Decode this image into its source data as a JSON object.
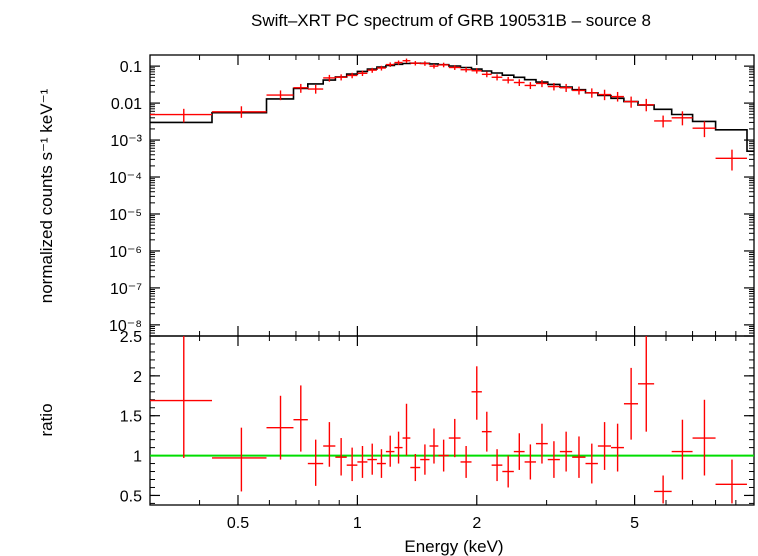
{
  "chart_data": [
    {
      "type": "scatter",
      "panel": "spectrum",
      "title": "Swift–XRT PC spectrum of GRB 190531B – source 8",
      "ylabel": "normalized counts s⁻¹ keV⁻¹",
      "xlabel": "",
      "xscale": "log",
      "yscale": "log",
      "xlim": [
        0.3,
        10
      ],
      "ylim": [
        5e-09,
        0.2
      ],
      "y_ticks": [
        {
          "value": 0.1,
          "label": "0.1"
        },
        {
          "value": 0.01,
          "label": "0.01"
        },
        {
          "value": 0.001,
          "label": "10⁻³"
        },
        {
          "value": 0.0001,
          "label": "10⁻⁴"
        },
        {
          "value": 1e-05,
          "label": "10⁻⁵"
        },
        {
          "value": 1e-06,
          "label": "10⁻⁶"
        },
        {
          "value": 1e-07,
          "label": "10⁻⁷"
        },
        {
          "value": 1e-08,
          "label": "10⁻⁸"
        }
      ],
      "colors": {
        "data": "#ff0000",
        "model": "#000000"
      },
      "series": [
        {
          "kind": "data-with-errors",
          "points": [
            {
              "x": 0.365,
              "xlo": 0.3,
              "xhi": 0.43,
              "y": 0.0049,
              "ylo": 0.003,
              "yhi": 0.007
            },
            {
              "x": 0.51,
              "xlo": 0.43,
              "xhi": 0.59,
              "y": 0.0058,
              "ylo": 0.004,
              "yhi": 0.0082
            },
            {
              "x": 0.64,
              "xlo": 0.59,
              "xhi": 0.69,
              "y": 0.0165,
              "ylo": 0.012,
              "yhi": 0.022
            },
            {
              "x": 0.72,
              "xlo": 0.69,
              "xhi": 0.75,
              "y": 0.026,
              "ylo": 0.019,
              "yhi": 0.033
            },
            {
              "x": 0.785,
              "xlo": 0.75,
              "xhi": 0.82,
              "y": 0.024,
              "ylo": 0.018,
              "yhi": 0.031
            },
            {
              "x": 0.85,
              "xlo": 0.82,
              "xhi": 0.88,
              "y": 0.048,
              "ylo": 0.038,
              "yhi": 0.058
            },
            {
              "x": 0.91,
              "xlo": 0.88,
              "xhi": 0.94,
              "y": 0.05,
              "ylo": 0.041,
              "yhi": 0.06
            },
            {
              "x": 0.97,
              "xlo": 0.94,
              "xhi": 1.0,
              "y": 0.056,
              "ylo": 0.047,
              "yhi": 0.066
            },
            {
              "x": 1.03,
              "xlo": 1.0,
              "xhi": 1.06,
              "y": 0.064,
              "ylo": 0.054,
              "yhi": 0.075
            },
            {
              "x": 1.09,
              "xlo": 1.06,
              "xhi": 1.12,
              "y": 0.078,
              "ylo": 0.066,
              "yhi": 0.09
            },
            {
              "x": 1.15,
              "xlo": 1.12,
              "xhi": 1.18,
              "y": 0.089,
              "ylo": 0.076,
              "yhi": 0.102
            },
            {
              "x": 1.21,
              "xlo": 1.18,
              "xhi": 1.24,
              "y": 0.11,
              "ylo": 0.095,
              "yhi": 0.126
            },
            {
              "x": 1.27,
              "xlo": 1.24,
              "xhi": 1.3,
              "y": 0.125,
              "ylo": 0.108,
              "yhi": 0.142
            },
            {
              "x": 1.33,
              "xlo": 1.3,
              "xhi": 1.36,
              "y": 0.14,
              "ylo": 0.122,
              "yhi": 0.16
            },
            {
              "x": 1.4,
              "xlo": 1.36,
              "xhi": 1.44,
              "y": 0.12,
              "ylo": 0.104,
              "yhi": 0.137
            },
            {
              "x": 1.48,
              "xlo": 1.44,
              "xhi": 1.52,
              "y": 0.118,
              "ylo": 0.102,
              "yhi": 0.135
            },
            {
              "x": 1.56,
              "xlo": 1.52,
              "xhi": 1.6,
              "y": 0.1,
              "ylo": 0.086,
              "yhi": 0.115
            },
            {
              "x": 1.65,
              "xlo": 1.6,
              "xhi": 1.7,
              "y": 0.108,
              "ylo": 0.093,
              "yhi": 0.124
            },
            {
              "x": 1.76,
              "xlo": 1.7,
              "xhi": 1.82,
              "y": 0.092,
              "ylo": 0.079,
              "yhi": 0.106
            },
            {
              "x": 1.88,
              "xlo": 1.82,
              "xhi": 1.94,
              "y": 0.08,
              "ylo": 0.068,
              "yhi": 0.093
            },
            {
              "x": 2.0,
              "xlo": 1.94,
              "xhi": 2.06,
              "y": 0.075,
              "ylo": 0.063,
              "yhi": 0.088
            },
            {
              "x": 2.12,
              "xlo": 2.06,
              "xhi": 2.18,
              "y": 0.06,
              "ylo": 0.05,
              "yhi": 0.071
            },
            {
              "x": 2.25,
              "xlo": 2.18,
              "xhi": 2.32,
              "y": 0.05,
              "ylo": 0.041,
              "yhi": 0.06
            },
            {
              "x": 2.4,
              "xlo": 2.32,
              "xhi": 2.48,
              "y": 0.042,
              "ylo": 0.034,
              "yhi": 0.051
            },
            {
              "x": 2.56,
              "xlo": 2.48,
              "xhi": 2.64,
              "y": 0.036,
              "ylo": 0.029,
              "yhi": 0.044
            },
            {
              "x": 2.73,
              "xlo": 2.64,
              "xhi": 2.82,
              "y": 0.03,
              "ylo": 0.024,
              "yhi": 0.037
            },
            {
              "x": 2.92,
              "xlo": 2.82,
              "xhi": 3.02,
              "y": 0.034,
              "ylo": 0.027,
              "yhi": 0.042
            },
            {
              "x": 3.13,
              "xlo": 3.02,
              "xhi": 3.24,
              "y": 0.028,
              "ylo": 0.022,
              "yhi": 0.035
            },
            {
              "x": 3.36,
              "xlo": 3.24,
              "xhi": 3.48,
              "y": 0.026,
              "ylo": 0.02,
              "yhi": 0.033
            },
            {
              "x": 3.62,
              "xlo": 3.48,
              "xhi": 3.76,
              "y": 0.022,
              "ylo": 0.017,
              "yhi": 0.028
            },
            {
              "x": 3.9,
              "xlo": 3.76,
              "xhi": 4.04,
              "y": 0.019,
              "ylo": 0.014,
              "yhi": 0.025
            },
            {
              "x": 4.2,
              "xlo": 4.04,
              "xhi": 4.36,
              "y": 0.017,
              "ylo": 0.012,
              "yhi": 0.023
            },
            {
              "x": 4.53,
              "xlo": 4.36,
              "xhi": 4.7,
              "y": 0.015,
              "ylo": 0.011,
              "yhi": 0.02
            },
            {
              "x": 4.9,
              "xlo": 4.7,
              "xhi": 5.1,
              "y": 0.011,
              "ylo": 0.0075,
              "yhi": 0.015
            },
            {
              "x": 5.35,
              "xlo": 5.1,
              "xhi": 5.6,
              "y": 0.009,
              "ylo": 0.006,
              "yhi": 0.013
            },
            {
              "x": 5.9,
              "xlo": 5.6,
              "xhi": 6.2,
              "y": 0.0033,
              "ylo": 0.0022,
              "yhi": 0.0046
            },
            {
              "x": 6.6,
              "xlo": 6.2,
              "xhi": 7.0,
              "y": 0.004,
              "ylo": 0.0025,
              "yhi": 0.006
            },
            {
              "x": 7.5,
              "xlo": 7.0,
              "xhi": 8.0,
              "y": 0.0021,
              "ylo": 0.0012,
              "yhi": 0.0032
            },
            {
              "x": 8.8,
              "xlo": 8.0,
              "xhi": 9.6,
              "y": 0.00032,
              "ylo": 0.00015,
              "yhi": 0.00055
            }
          ]
        },
        {
          "kind": "model-step",
          "edges": [
            0.3,
            0.43,
            0.59,
            0.69,
            0.75,
            0.82,
            0.88,
            0.94,
            1.0,
            1.06,
            1.12,
            1.18,
            1.24,
            1.3,
            1.36,
            1.44,
            1.52,
            1.6,
            1.7,
            1.82,
            1.94,
            2.06,
            2.18,
            2.32,
            2.48,
            2.64,
            2.82,
            3.02,
            3.24,
            3.48,
            3.76,
            4.04,
            4.36,
            4.7,
            5.1,
            5.6,
            6.2,
            7.0,
            8.0,
            9.6,
            10.0
          ],
          "values": [
            0.003,
            0.0055,
            0.013,
            0.025,
            0.033,
            0.042,
            0.051,
            0.061,
            0.072,
            0.083,
            0.094,
            0.104,
            0.112,
            0.118,
            0.12,
            0.119,
            0.115,
            0.109,
            0.101,
            0.092,
            0.083,
            0.074,
            0.065,
            0.057,
            0.05,
            0.043,
            0.037,
            0.032,
            0.027,
            0.023,
            0.019,
            0.016,
            0.0135,
            0.011,
            0.0088,
            0.0068,
            0.0049,
            0.0032,
            0.0019,
            0.0005
          ]
        }
      ]
    },
    {
      "type": "scatter",
      "panel": "ratio",
      "xlabel": "Energy (keV)",
      "ylabel": "ratio",
      "xscale": "log",
      "xlim": [
        0.3,
        10
      ],
      "ylim": [
        0.38,
        2.5
      ],
      "x_ticks": [
        {
          "value": 0.5,
          "label": "0.5"
        },
        {
          "value": 1,
          "label": "1"
        },
        {
          "value": 2,
          "label": "2"
        },
        {
          "value": 5,
          "label": "5"
        }
      ],
      "y_ticks": [
        {
          "value": 0.5,
          "label": "0.5"
        },
        {
          "value": 1,
          "label": "1"
        },
        {
          "value": 1.5,
          "label": "1.5"
        },
        {
          "value": 2,
          "label": "2"
        },
        {
          "value": 2.5,
          "label": "2.5"
        }
      ],
      "reference_line": {
        "y": 1,
        "color": "#00dd00"
      },
      "colors": {
        "data": "#ff0000"
      },
      "series": [
        {
          "kind": "data-with-errors",
          "points": [
            {
              "x": 0.365,
              "xlo": 0.3,
              "xhi": 0.43,
              "y": 1.69,
              "ylo": 0.97,
              "yhi": 2.5
            },
            {
              "x": 0.51,
              "xlo": 0.43,
              "xhi": 0.59,
              "y": 0.97,
              "ylo": 0.55,
              "yhi": 1.35
            },
            {
              "x": 0.64,
              "xlo": 0.59,
              "xhi": 0.69,
              "y": 1.35,
              "ylo": 0.95,
              "yhi": 1.75
            },
            {
              "x": 0.72,
              "xlo": 0.69,
              "xhi": 0.75,
              "y": 1.45,
              "ylo": 1.05,
              "yhi": 1.88
            },
            {
              "x": 0.785,
              "xlo": 0.75,
              "xhi": 0.82,
              "y": 0.9,
              "ylo": 0.62,
              "yhi": 1.2
            },
            {
              "x": 0.85,
              "xlo": 0.82,
              "xhi": 0.88,
              "y": 1.12,
              "ylo": 0.86,
              "yhi": 1.42
            },
            {
              "x": 0.91,
              "xlo": 0.88,
              "xhi": 0.94,
              "y": 0.98,
              "ylo": 0.75,
              "yhi": 1.22
            },
            {
              "x": 0.97,
              "xlo": 0.94,
              "xhi": 1.0,
              "y": 0.88,
              "ylo": 0.68,
              "yhi": 1.1
            },
            {
              "x": 1.03,
              "xlo": 1.0,
              "xhi": 1.06,
              "y": 0.92,
              "ylo": 0.72,
              "yhi": 1.12
            },
            {
              "x": 1.09,
              "xlo": 1.06,
              "xhi": 1.12,
              "y": 0.95,
              "ylo": 0.76,
              "yhi": 1.15
            },
            {
              "x": 1.15,
              "xlo": 1.12,
              "xhi": 1.18,
              "y": 0.9,
              "ylo": 0.72,
              "yhi": 1.08
            },
            {
              "x": 1.21,
              "xlo": 1.18,
              "xhi": 1.24,
              "y": 1.05,
              "ylo": 0.86,
              "yhi": 1.25
            },
            {
              "x": 1.27,
              "xlo": 1.24,
              "xhi": 1.3,
              "y": 1.1,
              "ylo": 0.9,
              "yhi": 1.3
            },
            {
              "x": 1.33,
              "xlo": 1.3,
              "xhi": 1.36,
              "y": 1.22,
              "ylo": 1.0,
              "yhi": 1.65
            },
            {
              "x": 1.4,
              "xlo": 1.36,
              "xhi": 1.44,
              "y": 0.85,
              "ylo": 0.68,
              "yhi": 1.02
            },
            {
              "x": 1.48,
              "xlo": 1.44,
              "xhi": 1.52,
              "y": 0.95,
              "ylo": 0.76,
              "yhi": 1.14
            },
            {
              "x": 1.56,
              "xlo": 1.52,
              "xhi": 1.6,
              "y": 1.12,
              "ylo": 0.9,
              "yhi": 1.34
            },
            {
              "x": 1.65,
              "xlo": 1.6,
              "xhi": 1.7,
              "y": 1.0,
              "ylo": 0.8,
              "yhi": 1.2
            },
            {
              "x": 1.76,
              "xlo": 1.7,
              "xhi": 1.82,
              "y": 1.22,
              "ylo": 0.98,
              "yhi": 1.46
            },
            {
              "x": 1.88,
              "xlo": 1.82,
              "xhi": 1.94,
              "y": 0.92,
              "ylo": 0.72,
              "yhi": 1.12
            },
            {
              "x": 2.0,
              "xlo": 1.94,
              "xhi": 2.06,
              "y": 1.8,
              "ylo": 1.45,
              "yhi": 2.12
            },
            {
              "x": 2.12,
              "xlo": 2.06,
              "xhi": 2.18,
              "y": 1.3,
              "ylo": 1.05,
              "yhi": 1.55
            },
            {
              "x": 2.25,
              "xlo": 2.18,
              "xhi": 2.32,
              "y": 0.88,
              "ylo": 0.68,
              "yhi": 1.08
            },
            {
              "x": 2.4,
              "xlo": 2.32,
              "xhi": 2.48,
              "y": 0.8,
              "ylo": 0.6,
              "yhi": 1.0
            },
            {
              "x": 2.56,
              "xlo": 2.48,
              "xhi": 2.64,
              "y": 1.05,
              "ylo": 0.82,
              "yhi": 1.28
            },
            {
              "x": 2.73,
              "xlo": 2.64,
              "xhi": 2.82,
              "y": 0.92,
              "ylo": 0.7,
              "yhi": 1.14
            },
            {
              "x": 2.92,
              "xlo": 2.82,
              "xhi": 3.02,
              "y": 1.15,
              "ylo": 0.9,
              "yhi": 1.4
            },
            {
              "x": 3.13,
              "xlo": 3.02,
              "xhi": 3.24,
              "y": 0.95,
              "ylo": 0.72,
              "yhi": 1.18
            },
            {
              "x": 3.36,
              "xlo": 3.24,
              "xhi": 3.48,
              "y": 1.05,
              "ylo": 0.8,
              "yhi": 1.3
            },
            {
              "x": 3.62,
              "xlo": 3.48,
              "xhi": 3.76,
              "y": 0.98,
              "ylo": 0.72,
              "yhi": 1.24
            },
            {
              "x": 3.9,
              "xlo": 3.76,
              "xhi": 4.04,
              "y": 0.9,
              "ylo": 0.65,
              "yhi": 1.15
            },
            {
              "x": 4.2,
              "xlo": 4.04,
              "xhi": 4.36,
              "y": 1.12,
              "ylo": 0.82,
              "yhi": 1.42
            },
            {
              "x": 4.53,
              "xlo": 4.36,
              "xhi": 4.7,
              "y": 1.1,
              "ylo": 0.8,
              "yhi": 1.4
            },
            {
              "x": 4.9,
              "xlo": 4.7,
              "xhi": 5.1,
              "y": 1.65,
              "ylo": 1.2,
              "yhi": 2.1
            },
            {
              "x": 5.35,
              "xlo": 5.1,
              "xhi": 5.6,
              "y": 1.9,
              "ylo": 1.3,
              "yhi": 2.5
            },
            {
              "x": 5.9,
              "xlo": 5.6,
              "xhi": 6.2,
              "y": 0.55,
              "ylo": 0.4,
              "yhi": 0.75
            },
            {
              "x": 6.6,
              "xlo": 6.2,
              "xhi": 7.0,
              "y": 1.05,
              "ylo": 0.7,
              "yhi": 1.45
            },
            {
              "x": 7.5,
              "xlo": 7.0,
              "xhi": 8.0,
              "y": 1.22,
              "ylo": 0.75,
              "yhi": 1.7
            },
            {
              "x": 8.8,
              "xlo": 8.0,
              "xhi": 9.6,
              "y": 0.64,
              "ylo": 0.4,
              "yhi": 0.95
            }
          ]
        }
      ]
    }
  ]
}
